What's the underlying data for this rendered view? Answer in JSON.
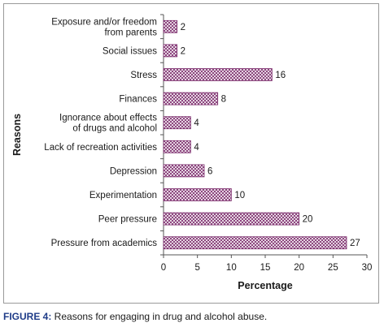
{
  "chart_data": {
    "type": "bar",
    "orientation": "horizontal",
    "categories": [
      "Exposure and/or freedom from parents",
      "Social issues",
      "Stress",
      "Finances",
      "Ignorance about effects of drugs and alcohol",
      "Lack of recreation activities",
      "Depression",
      "Experimentation",
      "Peer pressure",
      "Pressure from academics"
    ],
    "category_lines": [
      [
        "Exposure and/or freedom",
        "from parents"
      ],
      [
        "Social issues"
      ],
      [
        "Stress"
      ],
      [
        "Finances"
      ],
      [
        "Ignorance about effects",
        "of drugs and alcohol"
      ],
      [
        "Lack of recreation activities"
      ],
      [
        "Depression"
      ],
      [
        "Experimentation"
      ],
      [
        "Peer pressure"
      ],
      [
        "Pressure from academics"
      ]
    ],
    "values": [
      2,
      2,
      16,
      8,
      4,
      4,
      6,
      10,
      20,
      27
    ],
    "xlabel": "Percentage",
    "ylabel": "Reasons",
    "xlim": [
      0,
      30
    ],
    "xticks": [
      0,
      5,
      10,
      15,
      20,
      25,
      30
    ],
    "grid": false,
    "legend": "none",
    "bar_pattern": "crosshatch",
    "bar_color": "#7b2a6b"
  },
  "caption": {
    "label": "FIGURE 4:",
    "text": " Reasons for engaging in drug and alcohol abuse."
  }
}
